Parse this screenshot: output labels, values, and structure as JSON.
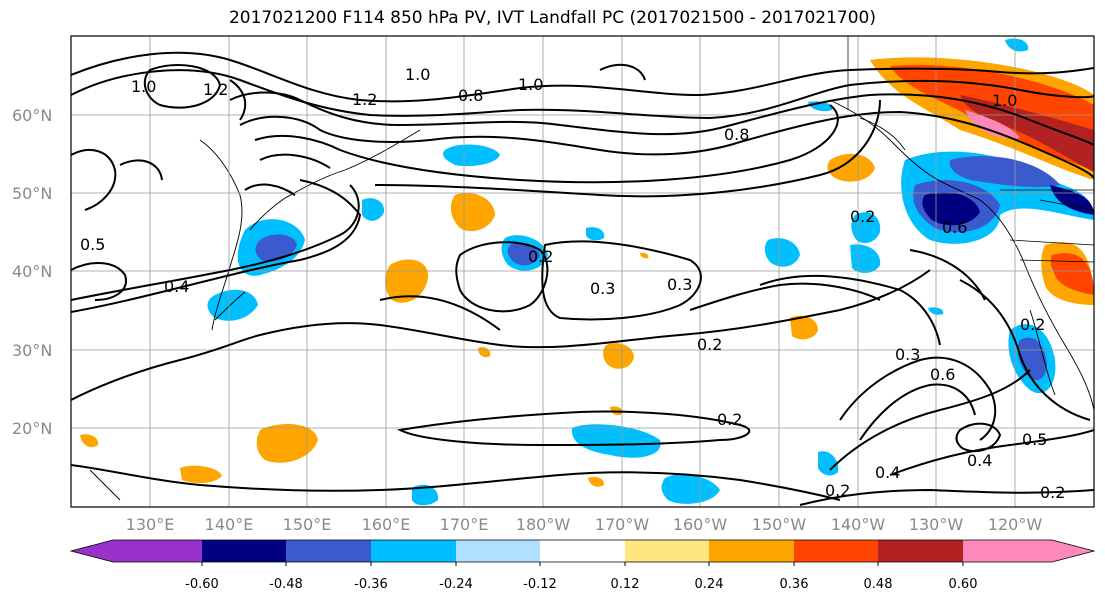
{
  "title": "2017021200 F114 850 hPa PV, IVT Landfall PC (2017021500 - 2017021700)",
  "lat_labels": [
    "60°N",
    "50°N",
    "40°N",
    "30°N",
    "20°N"
  ],
  "lon_labels": [
    "130°E",
    "140°E",
    "150°E",
    "160°E",
    "170°E",
    "180°W",
    "170°W",
    "160°W",
    "150°W",
    "140°W",
    "130°W",
    "120°W"
  ],
  "colorbar": {
    "colors": [
      "#9932cc",
      "#000080",
      "#3a5acd",
      "#00bfff",
      "#b0e0ff",
      "#ffffff",
      "#ffe680",
      "#ffa500",
      "#ff4500",
      "#b22222",
      "#ff88bb"
    ],
    "tick_labels": [
      "-0.60",
      "-0.48",
      "-0.36",
      "-0.24",
      "-0.12",
      "0.12",
      "0.24",
      "0.36",
      "0.48",
      "0.60"
    ]
  },
  "contour_labels": [
    "1.0",
    "1.2",
    "1.0",
    "1.2",
    "0.8",
    "1.0",
    "0.8",
    "1.0",
    "0.5",
    "0.4",
    "0.2",
    "0.3",
    "0.3",
    "0.2",
    "0.2",
    "0.2",
    "0.6",
    "0.3",
    "0.4",
    "0.5",
    "0.4",
    "0.2",
    "0.2",
    "0.2",
    "0.6"
  ]
}
